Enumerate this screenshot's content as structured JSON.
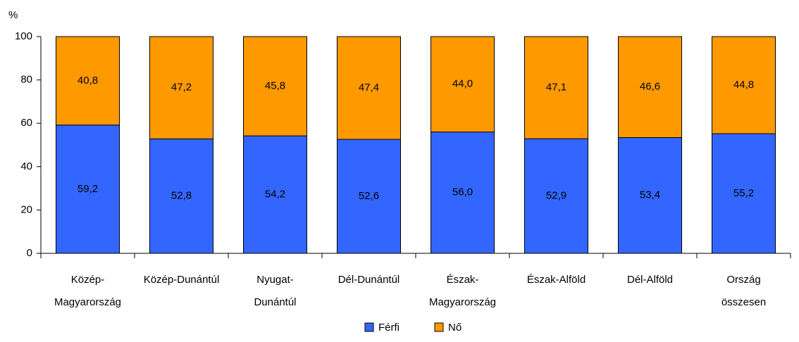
{
  "chart_data": {
    "type": "stacked_bar",
    "y_label": "%",
    "categories": [
      [
        "Közép-",
        "Magyarország"
      ],
      [
        "Közép-Dunántúl"
      ],
      [
        "Nyugat-",
        "Dunántúl"
      ],
      [
        "Dél-Dunántúl"
      ],
      [
        "Észak-",
        "Magyarország"
      ],
      [
        "Észak-Alföld"
      ],
      [
        "Dél-Alföld"
      ],
      [
        "Ország",
        "összesen"
      ]
    ],
    "series": [
      {
        "name": "Férfi",
        "color": "#3366ff",
        "values": [
          59.2,
          52.8,
          54.2,
          52.6,
          56.0,
          52.9,
          53.4,
          55.2
        ],
        "value_labels": [
          "59,2",
          "52,8",
          "54,2",
          "52,6",
          "56,0",
          "52,9",
          "53,4",
          "55,2"
        ]
      },
      {
        "name": "Nő",
        "color": "#ff9900",
        "values": [
          40.8,
          47.2,
          45.8,
          47.4,
          44.0,
          47.1,
          46.6,
          44.8
        ],
        "value_labels": [
          "40,8",
          "47,2",
          "45,8",
          "47,4",
          "44,0",
          "47,1",
          "46,6",
          "44,8"
        ]
      }
    ],
    "ylim": [
      0,
      100
    ],
    "yticks": [
      0,
      20,
      40,
      60,
      80,
      100
    ],
    "legend": "bottom"
  }
}
